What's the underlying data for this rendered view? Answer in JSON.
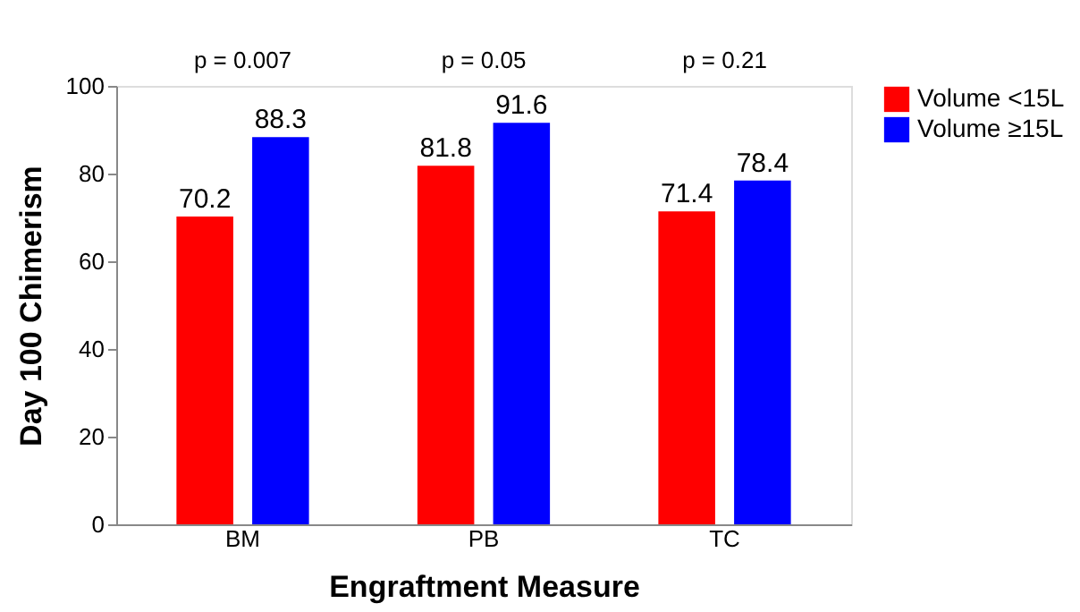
{
  "chart_data": {
    "type": "bar",
    "xlabel": "Engraftment Measure",
    "ylabel": "Day 100 Chimerism",
    "categories": [
      "BM",
      "PB",
      "TC"
    ],
    "series": [
      {
        "name": "Volume <15L",
        "color": "#ff0000",
        "values": [
          70.2,
          81.8,
          71.4
        ]
      },
      {
        "name": "Volume ≥15L",
        "color": "#0000ff",
        "values": [
          88.3,
          91.6,
          78.4
        ]
      }
    ],
    "ylim": [
      0,
      100
    ],
    "yticks": [
      0,
      20,
      40,
      60,
      80,
      100
    ],
    "grid": false,
    "legend": "top right",
    "data_labels": true,
    "annotations": [
      "p = 0.007",
      "p = 0.05",
      "p =  0.21"
    ]
  }
}
